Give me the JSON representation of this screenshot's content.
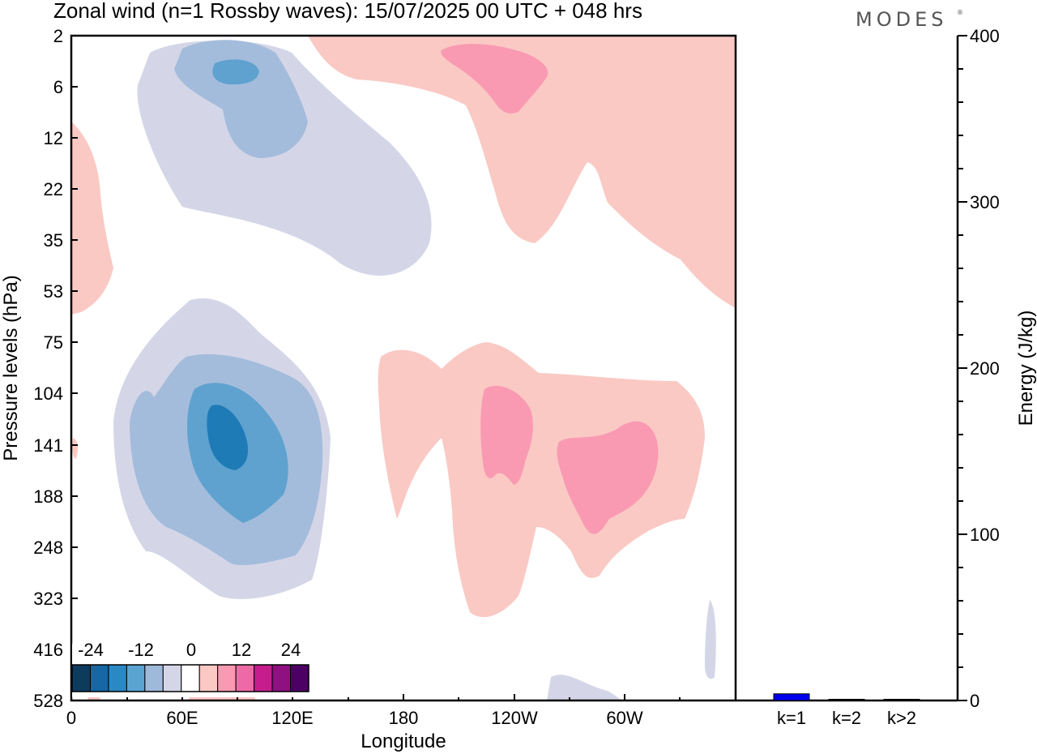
{
  "title": "Zonal wind (n=1 Rossby waves):  15/07/2025  00 UTC  + 048 hrs",
  "logo": "MODES",
  "chart_data": [
    {
      "type": "heatmap",
      "title": "Zonal wind (n=1 Rossby waves):  15/07/2025  00 UTC  + 048 hrs",
      "xlabel": "Longitude",
      "ylabel": "Pressure levels (hPa)",
      "xticks": [
        "0",
        "60E",
        "120E",
        "180",
        "120W",
        "60W"
      ],
      "xlim": [
        0,
        360
      ],
      "yticks": [
        "2",
        "6",
        "12",
        "22",
        "35",
        "53",
        "75",
        "104",
        "141",
        "188",
        "248",
        "323",
        "416",
        "528"
      ],
      "colorbar": {
        "labels": [
          "-24",
          "-12",
          "0",
          "12",
          "24"
        ],
        "levels": [
          -30,
          -25,
          -20,
          -15,
          -10,
          -5,
          0,
          5,
          10,
          15,
          20,
          25,
          30
        ],
        "colors": [
          "#0d3b5e",
          "#1667a3",
          "#2a88c3",
          "#5aa4d1",
          "#9eb9d9",
          "#d4d6e8",
          "#ffffff",
          "#fac9c4",
          "#f99ab2",
          "#ee6aa7",
          "#c71c8e",
          "#8f1080",
          "#4d0064"
        ]
      },
      "features": [
        {
          "sign": "negative",
          "lon": 95,
          "pressure": 141,
          "min_value": -20
        },
        {
          "sign": "negative",
          "lon": 95,
          "pressure": 6,
          "min_value": -15
        },
        {
          "sign": "positive",
          "lon": 240,
          "pressure": 141,
          "max_value": 10
        },
        {
          "sign": "positive",
          "lon": 290,
          "pressure": 141,
          "max_value": 10
        },
        {
          "sign": "positive",
          "lon": 250,
          "pressure": 6,
          "max_value": 10
        }
      ]
    },
    {
      "type": "bar",
      "categories": [
        "k=1",
        "k=2",
        "k>2"
      ],
      "values": [
        4,
        0.3,
        0.6
      ],
      "ylabel": "Energy (J/kg)",
      "ylim": [
        0,
        400
      ],
      "yticks": [
        "0",
        "100",
        "200",
        "300",
        "400"
      ],
      "bar_colors": [
        "#0000ee",
        "#000000",
        "#000000"
      ]
    }
  ]
}
